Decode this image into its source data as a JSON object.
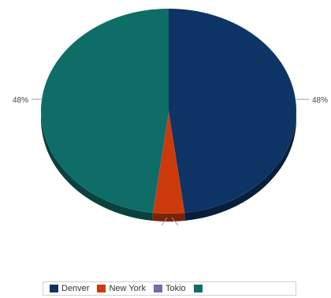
{
  "chart_data": {
    "type": "pie",
    "categories": [
      "Denver",
      "New York",
      "Tokio",
      ""
    ],
    "values": [
      48,
      4,
      0,
      48
    ],
    "data_labels": [
      "48%",
      "4%",
      "0%",
      "48%"
    ],
    "colors": [
      "#0d3464",
      "#cc3a0c",
      "#6f6fa8",
      "#0f6d68"
    ],
    "legend_position": "bottom",
    "style": "3d-tilted"
  }
}
